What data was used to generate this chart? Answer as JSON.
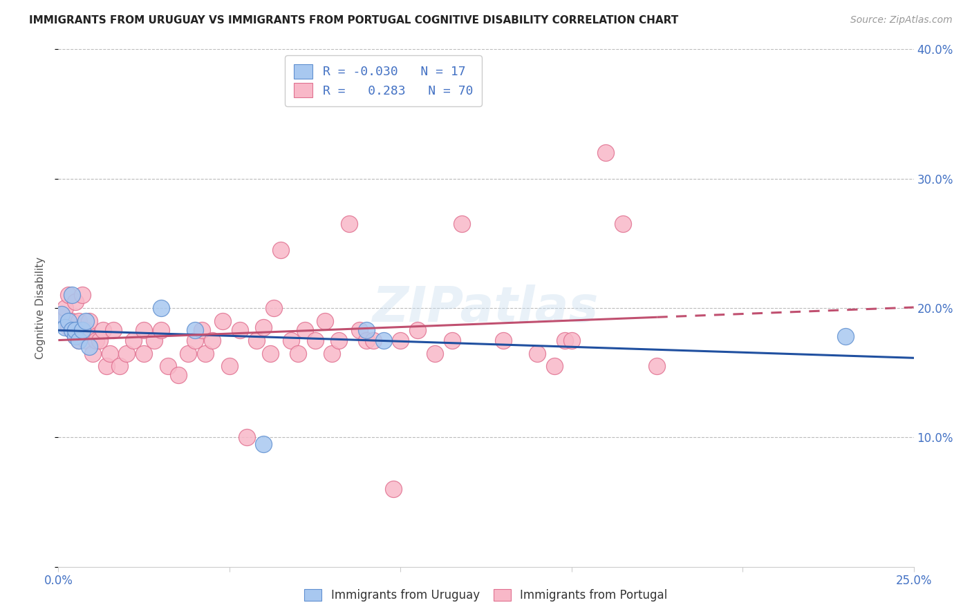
{
  "title": "IMMIGRANTS FROM URUGUAY VS IMMIGRANTS FROM PORTUGAL COGNITIVE DISABILITY CORRELATION CHART",
  "source": "Source: ZipAtlas.com",
  "ylabel": "Cognitive Disability",
  "xlim": [
    0.0,
    0.25
  ],
  "ylim": [
    0.0,
    0.4
  ],
  "legend1_R": "-0.030",
  "legend1_N": "17",
  "legend2_R": "0.283",
  "legend2_N": "70",
  "blue_fill": "#A8C8F0",
  "blue_edge": "#6090D0",
  "pink_fill": "#F8B8C8",
  "pink_edge": "#E07090",
  "blue_line_color": "#2050A0",
  "pink_line_color": "#C05070",
  "watermark": "ZIPatlas",
  "grid_color": "#BBBBBB",
  "tick_label_color": "#4472C4",
  "uruguay_points": [
    [
      0.001,
      0.195
    ],
    [
      0.002,
      0.185
    ],
    [
      0.003,
      0.19
    ],
    [
      0.004,
      0.183
    ],
    [
      0.004,
      0.21
    ],
    [
      0.005,
      0.178
    ],
    [
      0.005,
      0.183
    ],
    [
      0.006,
      0.175
    ],
    [
      0.007,
      0.183
    ],
    [
      0.008,
      0.19
    ],
    [
      0.009,
      0.17
    ],
    [
      0.03,
      0.2
    ],
    [
      0.04,
      0.183
    ],
    [
      0.06,
      0.095
    ],
    [
      0.09,
      0.183
    ],
    [
      0.095,
      0.175
    ],
    [
      0.23,
      0.178
    ]
  ],
  "portugal_points": [
    [
      0.001,
      0.195
    ],
    [
      0.002,
      0.2
    ],
    [
      0.003,
      0.185
    ],
    [
      0.003,
      0.21
    ],
    [
      0.004,
      0.19
    ],
    [
      0.004,
      0.183
    ],
    [
      0.005,
      0.205
    ],
    [
      0.005,
      0.178
    ],
    [
      0.006,
      0.19
    ],
    [
      0.006,
      0.175
    ],
    [
      0.007,
      0.183
    ],
    [
      0.007,
      0.21
    ],
    [
      0.008,
      0.175
    ],
    [
      0.008,
      0.183
    ],
    [
      0.009,
      0.19
    ],
    [
      0.01,
      0.165
    ],
    [
      0.011,
      0.175
    ],
    [
      0.012,
      0.175
    ],
    [
      0.013,
      0.183
    ],
    [
      0.014,
      0.155
    ],
    [
      0.015,
      0.165
    ],
    [
      0.016,
      0.183
    ],
    [
      0.018,
      0.155
    ],
    [
      0.02,
      0.165
    ],
    [
      0.022,
      0.175
    ],
    [
      0.025,
      0.183
    ],
    [
      0.025,
      0.165
    ],
    [
      0.028,
      0.175
    ],
    [
      0.03,
      0.183
    ],
    [
      0.032,
      0.155
    ],
    [
      0.035,
      0.148
    ],
    [
      0.038,
      0.165
    ],
    [
      0.04,
      0.175
    ],
    [
      0.042,
      0.183
    ],
    [
      0.043,
      0.165
    ],
    [
      0.045,
      0.175
    ],
    [
      0.048,
      0.19
    ],
    [
      0.05,
      0.155
    ],
    [
      0.053,
      0.183
    ],
    [
      0.055,
      0.1
    ],
    [
      0.058,
      0.175
    ],
    [
      0.06,
      0.185
    ],
    [
      0.062,
      0.165
    ],
    [
      0.063,
      0.2
    ],
    [
      0.065,
      0.245
    ],
    [
      0.068,
      0.175
    ],
    [
      0.07,
      0.165
    ],
    [
      0.072,
      0.183
    ],
    [
      0.075,
      0.175
    ],
    [
      0.078,
      0.19
    ],
    [
      0.08,
      0.165
    ],
    [
      0.082,
      0.175
    ],
    [
      0.085,
      0.265
    ],
    [
      0.088,
      0.183
    ],
    [
      0.09,
      0.175
    ],
    [
      0.092,
      0.175
    ],
    [
      0.098,
      0.06
    ],
    [
      0.1,
      0.175
    ],
    [
      0.105,
      0.183
    ],
    [
      0.11,
      0.165
    ],
    [
      0.115,
      0.175
    ],
    [
      0.118,
      0.265
    ],
    [
      0.13,
      0.175
    ],
    [
      0.14,
      0.165
    ],
    [
      0.145,
      0.155
    ],
    [
      0.148,
      0.175
    ],
    [
      0.15,
      0.175
    ],
    [
      0.16,
      0.32
    ],
    [
      0.165,
      0.265
    ],
    [
      0.175,
      0.155
    ]
  ]
}
